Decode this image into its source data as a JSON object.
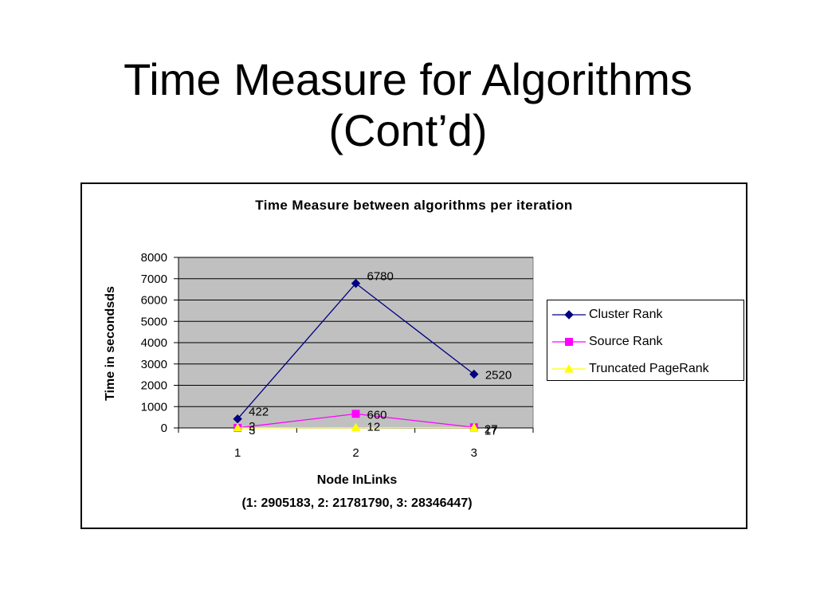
{
  "slide": {
    "title_line1": "Time Measure for Algorithms",
    "title_line2": "(Cont’d)"
  },
  "chart_data": {
    "type": "line",
    "title": "Time Measure between algorithms per iteration",
    "xlabel": "Node InLinks",
    "xlabel_note": "(1: 2905183, 2: 21781790, 3: 28346447)",
    "ylabel": "Time in secondsds",
    "categories": [
      "1",
      "2",
      "3"
    ],
    "ylim": [
      0,
      8000
    ],
    "yticks": [
      0,
      1000,
      2000,
      3000,
      4000,
      5000,
      6000,
      7000,
      8000
    ],
    "grid": true,
    "legend_position": "right",
    "series": [
      {
        "name": "Cluster Rank",
        "values": [
          422,
          6780,
          2520
        ],
        "labels": [
          "422",
          "6780",
          "2520"
        ],
        "color": "#000080",
        "marker": "diamond"
      },
      {
        "name": "Source Rank",
        "values": [
          2,
          660,
          27
        ],
        "labels": [
          "2",
          "660",
          "27"
        ],
        "color": "#FF00FF",
        "marker": "square"
      },
      {
        "name": "Truncated PageRank",
        "values": [
          3,
          12,
          17
        ],
        "labels": [
          "3",
          "12",
          "17"
        ],
        "color": "#FFFF00",
        "marker": "triangle"
      }
    ]
  }
}
